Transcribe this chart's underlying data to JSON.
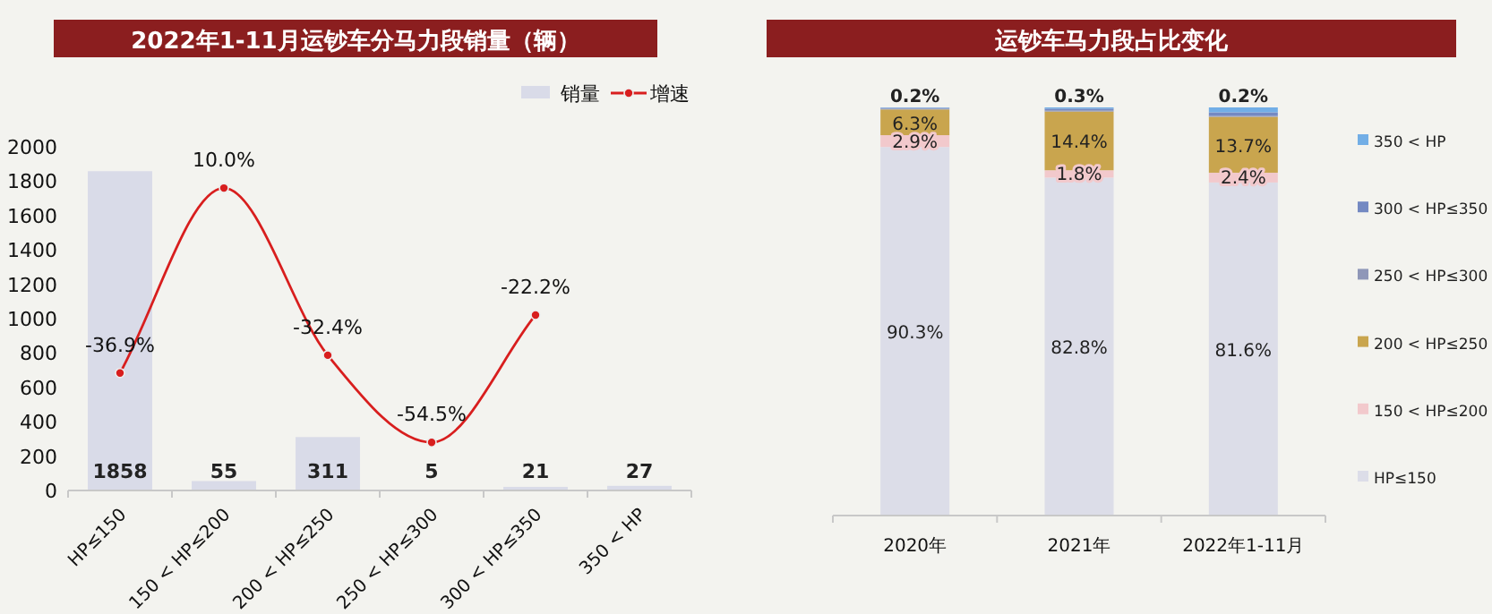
{
  "chart_data": [
    {
      "type": "bar",
      "title": "2022年1-11月运钞车分马力段销量（辆）",
      "categories": [
        "HP≤150",
        "150 < HP≤200",
        "200 < HP≤250",
        "250 < HP≤300",
        "300 < HP≤350",
        "350 < HP"
      ],
      "ylim": [
        0,
        2000
      ],
      "yticks": [
        0,
        200,
        400,
        600,
        800,
        1000,
        1200,
        1400,
        1600,
        1800,
        2000
      ],
      "legend": "top right",
      "grid": false,
      "tick_labels": "xy",
      "series": [
        {
          "name": "销量",
          "type": "bar",
          "color": "#d9dbe8",
          "values": [
            1858,
            55,
            311,
            5,
            21,
            27
          ],
          "value_labels": [
            "1858",
            "55",
            "311",
            "5",
            "21",
            "27"
          ]
        },
        {
          "name": "增速",
          "type": "line",
          "axis": "y2",
          "color": "#d81e1e",
          "marker": "circle",
          "line_style": "solid",
          "values": [
            -36.9,
            10.0,
            -32.4,
            -54.5,
            -22.2,
            null
          ],
          "value_labels": [
            "-36.9%",
            "10.0%",
            "-32.4%",
            "-54.5%",
            "-22.2%",
            null
          ]
        }
      ]
    },
    {
      "type": "bar",
      "title": "运钞车马力段占比变化",
      "categories": [
        "2020年",
        "2021年",
        "2022年1-11月"
      ],
      "stacked": true,
      "ylim": [
        0,
        100
      ],
      "tick_labels": "x",
      "legend": "right",
      "grid": false,
      "series": [
        {
          "name": "HP≤150",
          "color": "#dcdde8",
          "values": [
            90.3,
            82.8,
            81.6
          ],
          "value_labels": [
            "90.3%",
            "82.8%",
            "81.6%"
          ]
        },
        {
          "name": "150 < HP≤200",
          "color": "#f2c9cc",
          "values": [
            2.9,
            1.8,
            2.4
          ],
          "value_labels": [
            "2.9%",
            "1.8%",
            "2.4%"
          ]
        },
        {
          "name": "200 < HP≤250",
          "color": "#c9a54e",
          "values": [
            6.3,
            14.4,
            13.7
          ],
          "value_labels": [
            "6.3%",
            "14.4%",
            "13.7%"
          ]
        },
        {
          "name": "250 < HP≤300",
          "color": "#8f97b8",
          "values": [
            0.2,
            0.3,
            0.2
          ],
          "value_labels": [
            "0.2%",
            "0.3%",
            "0.2%"
          ]
        },
        {
          "name": "300 < HP≤350",
          "color": "#7489c2",
          "values": [
            0.2,
            0.4,
            0.9
          ],
          "value_labels": [
            null,
            null,
            null
          ]
        },
        {
          "name": "350 < HP",
          "color": "#72aee6",
          "values": [
            0.1,
            0.3,
            1.2
          ],
          "value_labels": [
            null,
            null,
            null
          ]
        }
      ]
    }
  ]
}
